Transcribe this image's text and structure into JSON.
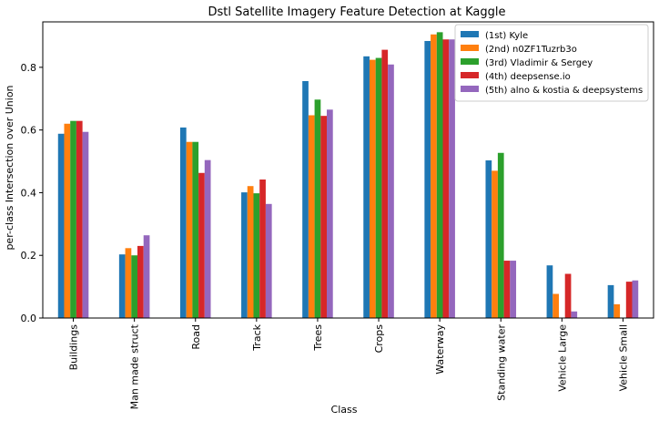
{
  "chart_data": {
    "type": "bar",
    "title": "Dstl Satellite Imagery Feature Detection at Kaggle",
    "xlabel": "Class",
    "ylabel": "per-class Intersection over Union",
    "ylim": [
      0,
      0.945
    ],
    "yticks": [
      "0.0",
      "0.2",
      "0.4",
      "0.6",
      "0.8"
    ],
    "grid": false,
    "legend_position": "top-right",
    "categories": [
      "Buildings",
      "Man made struct",
      "Road",
      "Track",
      "Trees",
      "Crops",
      "Waterway",
      "Standing water",
      "Vehicle Large",
      "Vehicle Small"
    ],
    "series": [
      {
        "name": "(1st) Kyle",
        "color": "#1f77b4",
        "values": [
          0.588,
          0.203,
          0.608,
          0.401,
          0.756,
          0.835,
          0.884,
          0.503,
          0.168,
          0.105
        ]
      },
      {
        "name": "(2nd) n0ZF1Tuzrb3o",
        "color": "#ff7f0e",
        "values": [
          0.62,
          0.223,
          0.562,
          0.421,
          0.647,
          0.824,
          0.905,
          0.47,
          0.077,
          0.044
        ]
      },
      {
        "name": "(3rd) Vladimir & Sergey",
        "color": "#2ca02c",
        "values": [
          0.629,
          0.2,
          0.562,
          0.398,
          0.697,
          0.83,
          0.912,
          0.527,
          0.0,
          0.0
        ]
      },
      {
        "name": "(4th) deepsense.io",
        "color": "#d62728",
        "values": [
          0.629,
          0.23,
          0.463,
          0.442,
          0.645,
          0.856,
          0.889,
          0.183,
          0.141,
          0.116
        ]
      },
      {
        "name": "(5th) alno & kostia & deepsystems",
        "color": "#9467bd",
        "values": [
          0.594,
          0.264,
          0.504,
          0.364,
          0.665,
          0.809,
          0.889,
          0.183,
          0.021,
          0.12
        ]
      }
    ]
  }
}
